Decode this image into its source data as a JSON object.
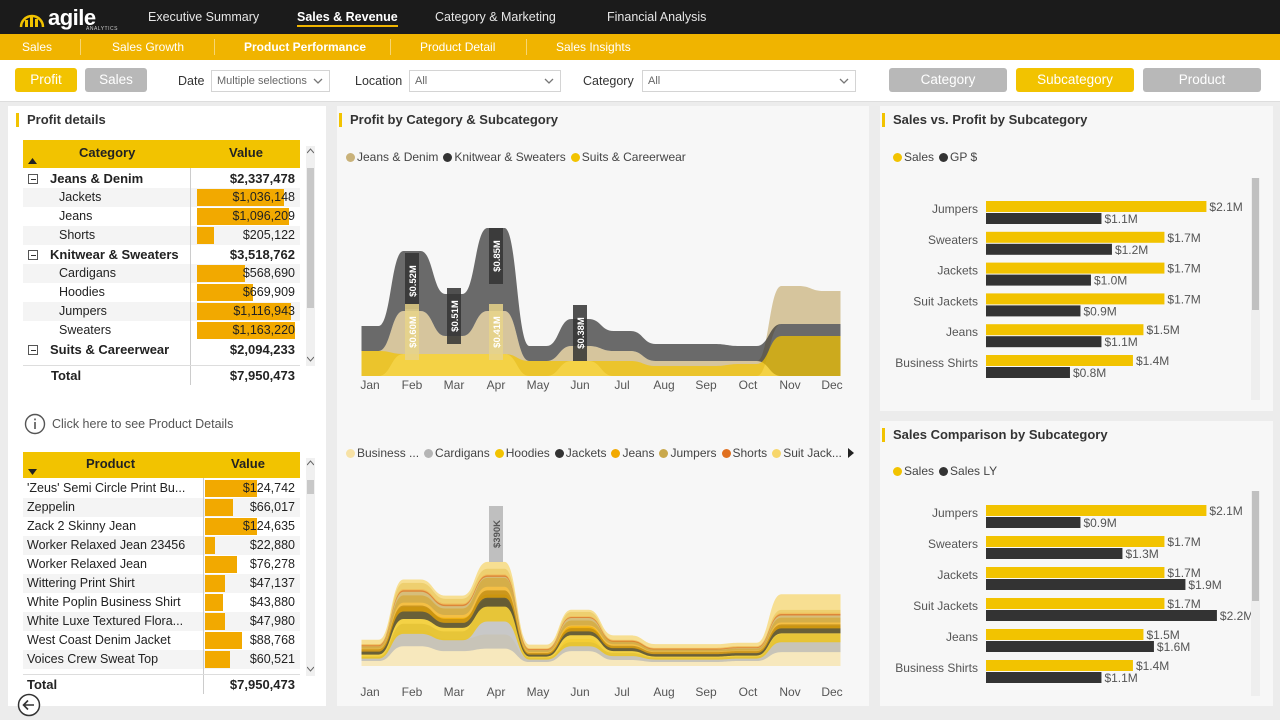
{
  "app": {
    "logo_text": "agile",
    "logo_sub": "ANALYTICS"
  },
  "top_nav": [
    "Executive Summary",
    "Sales & Revenue",
    "Category & Marketing",
    "Financial Analysis"
  ],
  "sub_nav": [
    "Sales",
    "Sales Growth",
    "Product Performance",
    "Product Detail",
    "Sales Insights"
  ],
  "filters": {
    "measure_buttons": [
      "Profit",
      "Sales"
    ],
    "date_label": "Date",
    "date_value": "Multiple selections",
    "location_label": "Location",
    "location_value": "All",
    "category_label": "Category",
    "category_value": "All",
    "level_buttons": [
      "Category",
      "Subcategory",
      "Product"
    ]
  },
  "profit_details": {
    "title": "Profit details",
    "columns": [
      "Category",
      "Value"
    ],
    "rows": [
      {
        "label": "Jeans & Denim",
        "value": "$2,337,478",
        "level": 0,
        "n": 2337478
      },
      {
        "label": "Jackets",
        "value": "$1,036,148",
        "level": 1,
        "n": 1036148
      },
      {
        "label": "Jeans",
        "value": "$1,096,209",
        "level": 1,
        "n": 1096209
      },
      {
        "label": "Shorts",
        "value": "$205,122",
        "level": 1,
        "n": 205122
      },
      {
        "label": "Knitwear & Sweaters",
        "value": "$3,518,762",
        "level": 0,
        "n": 3518762
      },
      {
        "label": "Cardigans",
        "value": "$568,690",
        "level": 1,
        "n": 568690
      },
      {
        "label": "Hoodies",
        "value": "$669,909",
        "level": 1,
        "n": 669909
      },
      {
        "label": "Jumpers",
        "value": "$1,116,943",
        "level": 1,
        "n": 1116943
      },
      {
        "label": "Sweaters",
        "value": "$1,163,220",
        "level": 1,
        "n": 1163220
      },
      {
        "label": "Suits & Careerwear",
        "value": "$2,094,233",
        "level": 0,
        "n": 2094233
      }
    ],
    "total_label": "Total",
    "total_value": "$7,950,473"
  },
  "details_link": "Click here to see Product Details",
  "product_table": {
    "columns": [
      "Product",
      "Value"
    ],
    "rows": [
      {
        "label": "'Zeus' Semi Circle Print Bu...",
        "value": "$124,742",
        "n": 124742
      },
      {
        "label": "Zeppelin",
        "value": "$66,017",
        "n": 66017
      },
      {
        "label": "Zack 2 Skinny Jean",
        "value": "$124,635",
        "n": 124635
      },
      {
        "label": "Worker Relaxed Jean 23456",
        "value": "$22,880",
        "n": 22880
      },
      {
        "label": "Worker Relaxed Jean",
        "value": "$76,278",
        "n": 76278
      },
      {
        "label": "Wittering Print Shirt",
        "value": "$47,137",
        "n": 47137
      },
      {
        "label": "White Poplin Business Shirt",
        "value": "$43,880",
        "n": 43880
      },
      {
        "label": "White Luxe Textured Flora...",
        "value": "$47,980",
        "n": 47980
      },
      {
        "label": "West Coast Denim Jacket",
        "value": "$88,768",
        "n": 88768
      },
      {
        "label": "Voices Crew Sweat Top",
        "value": "$60,521",
        "n": 60521
      }
    ],
    "total_label": "Total",
    "total_value": "$7,950,473"
  },
  "profit_ribbon": {
    "title": "Profit by Category & Subcategory",
    "legend": [
      {
        "name": "Jeans & Denim",
        "color": "#c9b27a"
      },
      {
        "name": "Knitwear & Sweaters",
        "color": "#333333"
      },
      {
        "name": "Suits & Careerwear",
        "color": "#f2c300"
      }
    ],
    "months": [
      "Jan",
      "Feb",
      "Mar",
      "Apr",
      "May",
      "Jun",
      "Jul",
      "Aug",
      "Sep",
      "Oct",
      "Nov",
      "Dec"
    ],
    "labels": [
      {
        "month": "Feb",
        "text": "$0.52M"
      },
      {
        "month": "Feb",
        "text": "$0.60M"
      },
      {
        "month": "Mar",
        "text": "$0.51M"
      },
      {
        "month": "Apr",
        "text": "$0.85M"
      },
      {
        "month": "Apr",
        "text": "$0.41M"
      },
      {
        "month": "Jun",
        "text": "$0.38M"
      }
    ]
  },
  "sub_ribbon": {
    "legend": [
      {
        "name": "Business ...",
        "color": "#f7e2a6"
      },
      {
        "name": "Cardigans",
        "color": "#b5b5b5"
      },
      {
        "name": "Hoodies",
        "color": "#f2c300"
      },
      {
        "name": "Jackets",
        "color": "#333333"
      },
      {
        "name": "Jeans",
        "color": "#f2a900"
      },
      {
        "name": "Jumpers",
        "color": "#c9a84b"
      },
      {
        "name": "Shorts",
        "color": "#e07020"
      },
      {
        "name": "Suit Jack...",
        "color": "#f7d66b"
      }
    ],
    "months": [
      "Jan",
      "Feb",
      "Mar",
      "Apr",
      "May",
      "Jun",
      "Jul",
      "Aug",
      "Sep",
      "Oct",
      "Nov",
      "Dec"
    ],
    "labels": [
      {
        "month": "Apr",
        "text": "$390K"
      }
    ]
  },
  "sales_vs_profit": {
    "title": "Sales vs. Profit by Subcategory",
    "legend": [
      {
        "name": "Sales",
        "color": "#f2c300"
      },
      {
        "name": "GP $",
        "color": "#333333"
      }
    ],
    "chart_data": {
      "type": "bar",
      "categories": [
        "Jumpers",
        "Sweaters",
        "Jackets",
        "Suit Jackets",
        "Jeans",
        "Business Shirts"
      ],
      "series": [
        {
          "name": "Sales",
          "values": [
            2.1,
            1.7,
            1.7,
            1.7,
            1.5,
            1.4
          ],
          "labels": [
            "$2.1M",
            "$1.7M",
            "$1.7M",
            "$1.7M",
            "$1.5M",
            "$1.4M"
          ]
        },
        {
          "name": "GP $",
          "values": [
            1.1,
            1.2,
            1.0,
            0.9,
            1.1,
            0.8
          ],
          "labels": [
            "$1.1M",
            "$1.2M",
            "$1.0M",
            "$0.9M",
            "$1.1M",
            "$0.8M"
          ]
        }
      ],
      "xlim": [
        0,
        2.4
      ]
    }
  },
  "sales_comparison": {
    "title": "Sales Comparison by Subcategory",
    "legend": [
      {
        "name": "Sales",
        "color": "#f2c300"
      },
      {
        "name": "Sales LY",
        "color": "#333333"
      }
    ],
    "chart_data": {
      "type": "bar",
      "categories": [
        "Jumpers",
        "Sweaters",
        "Jackets",
        "Suit Jackets",
        "Jeans",
        "Business Shirts"
      ],
      "series": [
        {
          "name": "Sales",
          "values": [
            2.1,
            1.7,
            1.7,
            1.7,
            1.5,
            1.4
          ],
          "labels": [
            "$2.1M",
            "$1.7M",
            "$1.7M",
            "$1.7M",
            "$1.5M",
            "$1.4M"
          ]
        },
        {
          "name": "Sales LY",
          "values": [
            0.9,
            1.3,
            1.9,
            2.2,
            1.6,
            1.1
          ],
          "labels": [
            "$0.9M",
            "$1.3M",
            "$1.9M",
            "$2.2M",
            "$1.6M",
            "$1.1M"
          ]
        }
      ],
      "xlim": [
        0,
        2.4
      ]
    }
  }
}
